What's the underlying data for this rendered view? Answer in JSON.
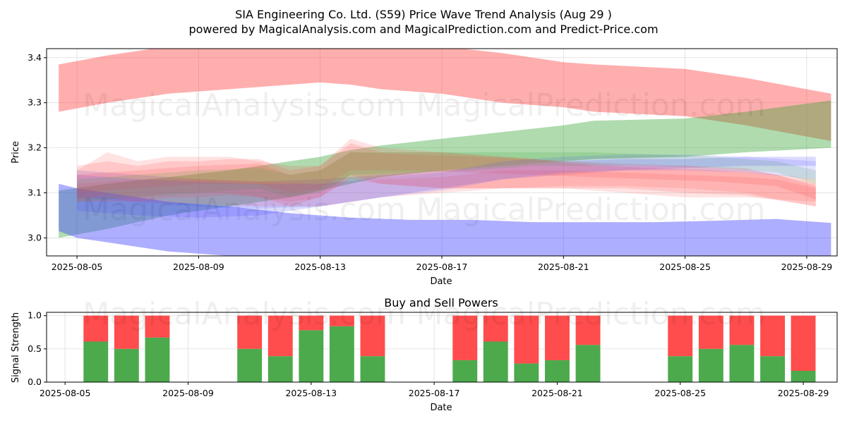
{
  "title_line1": "SIA Engineering Co. Ltd. (S59) Price Wave Trend Analysis (Aug 29 )",
  "title_line2": "powered by MagicalAnalysis.com and MagicalPrediction.com and Predict-Price.com",
  "watermarks": [
    "MagicalAnalysis.com",
    "MagicalPrediction.com"
  ],
  "colors": {
    "green_band": "#2ca02c",
    "red_band": "#ff4c4c",
    "blue_band": "#4c4cff",
    "buy": "#4caa4c",
    "sell": "#ff4c4c",
    "grid": "#dddddd"
  },
  "chart_data": [
    {
      "type": "area",
      "title": "",
      "xlabel": "Date",
      "ylabel": "Price",
      "ylim": [
        2.96,
        3.42
      ],
      "xlim": [
        "2025-08-04",
        "2025-08-30"
      ],
      "grid": true,
      "x_ticks": [
        "2025-08-05",
        "2025-08-09",
        "2025-08-13",
        "2025-08-17",
        "2025-08-21",
        "2025-08-25",
        "2025-08-29"
      ],
      "y_ticks": [
        3.0,
        3.1,
        3.2,
        3.3,
        3.4
      ],
      "bands": [
        {
          "color": "red",
          "opacity": 0.45,
          "x": [
            "2025-08-04.4",
            "2025-08-06",
            "2025-08-08",
            "2025-08-10",
            "2025-08-12",
            "2025-08-13",
            "2025-08-14",
            "2025-08-15",
            "2025-08-17",
            "2025-08-19",
            "2025-08-21",
            "2025-08-22",
            "2025-08-25",
            "2025-08-27",
            "2025-08-29.8"
          ],
          "upper": [
            3.385,
            3.405,
            3.425,
            3.44,
            3.44,
            3.44,
            3.44,
            3.44,
            3.425,
            3.41,
            3.39,
            3.385,
            3.375,
            3.355,
            3.32
          ],
          "lower": [
            3.28,
            3.3,
            3.32,
            3.33,
            3.34,
            3.345,
            3.34,
            3.33,
            3.32,
            3.3,
            3.29,
            3.28,
            3.27,
            3.25,
            3.215
          ]
        },
        {
          "color": "green",
          "opacity": 0.38,
          "x": [
            "2025-08-04.4",
            "2025-08-06",
            "2025-08-08",
            "2025-08-10",
            "2025-08-12",
            "2025-08-13",
            "2025-08-14",
            "2025-08-15",
            "2025-08-17",
            "2025-08-19",
            "2025-08-21",
            "2025-08-22",
            "2025-08-25",
            "2025-08-27",
            "2025-08-29.8"
          ],
          "upper": [
            3.105,
            3.12,
            3.135,
            3.15,
            3.17,
            3.18,
            3.195,
            3.205,
            3.22,
            3.235,
            3.25,
            3.26,
            3.265,
            3.28,
            3.305
          ],
          "lower": [
            3.0,
            3.02,
            3.05,
            3.07,
            3.09,
            3.105,
            3.12,
            3.135,
            3.15,
            3.16,
            3.17,
            3.175,
            3.18,
            3.19,
            3.2
          ]
        },
        {
          "color": "blue",
          "opacity": 0.45,
          "x": [
            "2025-08-04.4",
            "2025-08-05",
            "2025-08-06",
            "2025-08-07",
            "2025-08-08",
            "2025-08-10",
            "2025-08-12",
            "2025-08-14",
            "2025-08-16",
            "2025-08-18",
            "2025-08-20",
            "2025-08-22",
            "2025-08-24",
            "2025-08-26",
            "2025-08-28",
            "2025-08-29.8"
          ],
          "upper": [
            3.12,
            3.11,
            3.1,
            3.09,
            3.08,
            3.07,
            3.055,
            3.045,
            3.04,
            3.04,
            3.035,
            3.035,
            3.035,
            3.038,
            3.042,
            3.033
          ],
          "lower": [
            3.015,
            3.0,
            2.99,
            2.98,
            2.97,
            2.96,
            2.955,
            2.955,
            2.955,
            2.955,
            2.955,
            2.955,
            2.955,
            2.955,
            2.955,
            2.955
          ]
        },
        {
          "color": "blue",
          "opacity": 0.2,
          "x": [
            "2025-08-05",
            "2025-08-07",
            "2025-08-09",
            "2025-08-11",
            "2025-08-13",
            "2025-08-15",
            "2025-08-17",
            "2025-08-19",
            "2025-08-21",
            "2025-08-23",
            "2025-08-25",
            "2025-08-27",
            "2025-08-29.3"
          ],
          "upper": [
            3.15,
            3.14,
            3.13,
            3.125,
            3.13,
            3.14,
            3.15,
            3.16,
            3.17,
            3.175,
            3.175,
            3.18,
            3.18
          ],
          "lower": [
            3.06,
            3.05,
            3.045,
            3.05,
            3.07,
            3.09,
            3.11,
            3.13,
            3.14,
            3.15,
            3.155,
            3.16,
            3.16
          ]
        },
        {
          "color": "red",
          "opacity": 0.18,
          "x": [
            "2025-08-05",
            "2025-08-06",
            "2025-08-07",
            "2025-08-08",
            "2025-08-09",
            "2025-08-10",
            "2025-08-11",
            "2025-08-12",
            "2025-08-13",
            "2025-08-14",
            "2025-08-15",
            "2025-08-17",
            "2025-08-19",
            "2025-08-21",
            "2025-08-23",
            "2025-08-25",
            "2025-08-27",
            "2025-08-29.3"
          ],
          "upper": [
            3.16,
            3.17,
            3.16,
            3.17,
            3.17,
            3.175,
            3.175,
            3.15,
            3.16,
            3.21,
            3.19,
            3.19,
            3.18,
            3.17,
            3.165,
            3.16,
            3.155,
            3.12
          ],
          "lower": [
            3.09,
            3.09,
            3.08,
            3.09,
            3.09,
            3.095,
            3.09,
            3.07,
            3.09,
            3.13,
            3.12,
            3.11,
            3.11,
            3.11,
            3.11,
            3.1,
            3.095,
            3.07
          ]
        },
        {
          "color": "red",
          "opacity": 0.16,
          "x": [
            "2025-08-05",
            "2025-08-06",
            "2025-08-07",
            "2025-08-08",
            "2025-08-10",
            "2025-08-12",
            "2025-08-13",
            "2025-08-14",
            "2025-08-15",
            "2025-08-17",
            "2025-08-19",
            "2025-08-21",
            "2025-08-23",
            "2025-08-25",
            "2025-08-27",
            "2025-08-29.3"
          ],
          "upper": [
            3.15,
            3.19,
            3.17,
            3.18,
            3.18,
            3.16,
            3.16,
            3.22,
            3.2,
            3.19,
            3.18,
            3.17,
            3.16,
            3.16,
            3.15,
            3.13
          ],
          "lower": [
            3.08,
            3.1,
            3.09,
            3.1,
            3.1,
            3.08,
            3.09,
            3.14,
            3.12,
            3.11,
            3.11,
            3.11,
            3.1,
            3.09,
            3.09,
            3.08
          ]
        },
        {
          "color": "red",
          "opacity": 0.18,
          "x": [
            "2025-08-05",
            "2025-08-07",
            "2025-08-09",
            "2025-08-11",
            "2025-08-12",
            "2025-08-13",
            "2025-08-14",
            "2025-08-16",
            "2025-08-18",
            "2025-08-20",
            "2025-08-22",
            "2025-08-24",
            "2025-08-26",
            "2025-08-28",
            "2025-08-29.3"
          ],
          "upper": [
            3.14,
            3.15,
            3.16,
            3.165,
            3.14,
            3.15,
            3.19,
            3.185,
            3.18,
            3.175,
            3.16,
            3.155,
            3.15,
            3.14,
            3.115
          ],
          "lower": [
            3.1,
            3.11,
            3.12,
            3.12,
            3.1,
            3.11,
            3.15,
            3.15,
            3.145,
            3.14,
            3.135,
            3.13,
            3.125,
            3.115,
            3.085
          ]
        },
        {
          "color": "green",
          "opacity": 0.16,
          "x": [
            "2025-08-05",
            "2025-08-07",
            "2025-08-09",
            "2025-08-11",
            "2025-08-12",
            "2025-08-13",
            "2025-08-14",
            "2025-08-16",
            "2025-08-18",
            "2025-08-20",
            "2025-08-22",
            "2025-08-24",
            "2025-08-26",
            "2025-08-28",
            "2025-08-29.3"
          ],
          "upper": [
            3.13,
            3.14,
            3.15,
            3.155,
            3.14,
            3.15,
            3.19,
            3.19,
            3.19,
            3.19,
            3.19,
            3.185,
            3.18,
            3.17,
            3.15
          ],
          "lower": [
            3.08,
            3.09,
            3.1,
            3.11,
            3.09,
            3.1,
            3.14,
            3.145,
            3.15,
            3.16,
            3.16,
            3.16,
            3.155,
            3.145,
            3.12
          ]
        },
        {
          "color": "red",
          "opacity": 0.16,
          "x": [
            "2025-08-05",
            "2025-08-07",
            "2025-08-09",
            "2025-08-11",
            "2025-08-13",
            "2025-08-15",
            "2025-08-17",
            "2025-08-19",
            "2025-08-21",
            "2025-08-23",
            "2025-08-25",
            "2025-08-27",
            "2025-08-28",
            "2025-08-29.3"
          ],
          "upper": [
            3.12,
            3.13,
            3.13,
            3.125,
            3.12,
            3.13,
            3.135,
            3.15,
            3.15,
            3.145,
            3.14,
            3.135,
            3.13,
            3.11
          ],
          "lower": [
            3.08,
            3.08,
            3.075,
            3.07,
            3.07,
            3.09,
            3.1,
            3.11,
            3.115,
            3.115,
            3.11,
            3.1,
            3.085,
            3.07
          ]
        },
        {
          "color": "blue",
          "opacity": 0.15,
          "x": [
            "2025-08-05",
            "2025-08-07",
            "2025-08-09",
            "2025-08-11",
            "2025-08-13",
            "2025-08-15",
            "2025-08-17",
            "2025-08-19",
            "2025-08-21",
            "2025-08-23",
            "2025-08-25",
            "2025-08-27",
            "2025-08-29.3"
          ],
          "upper": [
            3.14,
            3.13,
            3.125,
            3.12,
            3.12,
            3.135,
            3.145,
            3.17,
            3.18,
            3.185,
            3.185,
            3.18,
            3.17
          ],
          "lower": [
            3.09,
            3.08,
            3.07,
            3.065,
            3.07,
            3.09,
            3.105,
            3.13,
            3.145,
            3.15,
            3.15,
            3.145,
            3.13
          ]
        }
      ]
    },
    {
      "type": "bar",
      "title": "Buy and Sell Powers",
      "xlabel": "Date",
      "ylabel": "Signal Strength",
      "ylim": [
        0,
        1.05
      ],
      "xlim": [
        "2025-08-04.4",
        "2025-08-30.1"
      ],
      "x_ticks": [
        "2025-08-05",
        "2025-08-09",
        "2025-08-13",
        "2025-08-17",
        "2025-08-21",
        "2025-08-25",
        "2025-08-29"
      ],
      "y_ticks": [
        0.0,
        0.5,
        1.0
      ],
      "series": [
        {
          "name": "Buy",
          "color": "green"
        },
        {
          "name": "Sell",
          "color": "red"
        }
      ],
      "dates": [
        "2025-08-06",
        "2025-08-07",
        "2025-08-08",
        "2025-08-11",
        "2025-08-12",
        "2025-08-13",
        "2025-08-14",
        "2025-08-15",
        "2025-08-18",
        "2025-08-19",
        "2025-08-20",
        "2025-08-21",
        "2025-08-22",
        "2025-08-25",
        "2025-08-26",
        "2025-08-27",
        "2025-08-28",
        "2025-08-29"
      ],
      "buy": [
        0.61,
        0.5,
        0.67,
        0.5,
        0.39,
        0.78,
        0.84,
        0.39,
        0.33,
        0.61,
        0.28,
        0.33,
        0.56,
        0.39,
        0.5,
        0.56,
        0.39,
        0.17
      ],
      "sell": [
        0.39,
        0.5,
        0.33,
        0.5,
        0.61,
        0.22,
        0.16,
        0.61,
        0.67,
        0.39,
        0.72,
        0.67,
        0.44,
        0.61,
        0.5,
        0.44,
        0.61,
        0.83
      ]
    }
  ]
}
